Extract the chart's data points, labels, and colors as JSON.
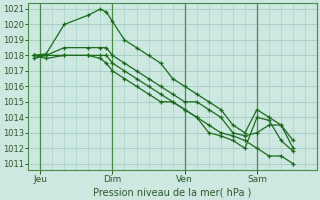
{
  "background_color": "#cce8e0",
  "grid_color": "#a8d0c8",
  "line_color": "#1a6b1a",
  "title": "Pression niveau de la mer( hPa )",
  "ylim": [
    1011,
    1021
  ],
  "yticks": [
    1011,
    1012,
    1013,
    1014,
    1015,
    1016,
    1017,
    1018,
    1019,
    1020,
    1021
  ],
  "xlim": [
    0,
    24
  ],
  "xtick_labels": [
    "Jeu",
    "Dim",
    "Ven",
    "Sam"
  ],
  "xtick_positions": [
    1,
    7,
    13,
    19
  ],
  "vline_positions": [
    1,
    7,
    13,
    19
  ],
  "series": [
    {
      "x": [
        0.5,
        1.5,
        3,
        5,
        6,
        6.5,
        7,
        8,
        9,
        10,
        11,
        12,
        13,
        14,
        15,
        16,
        17,
        18,
        19,
        20,
        21,
        22
      ],
      "y": [
        1018.0,
        1018.1,
        1020.0,
        1020.6,
        1021.0,
        1020.8,
        1020.2,
        1019.0,
        1018.5,
        1018.0,
        1017.5,
        1016.5,
        1016.0,
        1015.5,
        1015.0,
        1014.5,
        1013.5,
        1013.0,
        1014.5,
        1014.0,
        1013.5,
        1012.5
      ]
    },
    {
      "x": [
        0.5,
        1.5,
        3,
        5,
        6,
        6.5,
        7,
        8,
        9,
        10,
        11,
        12,
        13,
        14,
        15,
        16,
        17,
        18,
        19,
        20,
        21,
        22
      ],
      "y": [
        1018.0,
        1018.0,
        1018.5,
        1018.5,
        1018.5,
        1018.5,
        1018.0,
        1017.5,
        1017.0,
        1016.5,
        1016.0,
        1015.5,
        1015.0,
        1015.0,
        1014.5,
        1014.0,
        1013.0,
        1012.8,
        1013.0,
        1013.5,
        1013.5,
        1012.0
      ]
    },
    {
      "x": [
        0.5,
        1.5,
        3,
        5,
        6,
        6.5,
        7,
        8,
        9,
        10,
        11,
        12,
        13,
        14,
        15,
        16,
        17,
        18,
        19,
        20,
        21,
        22
      ],
      "y": [
        1017.8,
        1018.0,
        1018.0,
        1018.0,
        1018.0,
        1018.0,
        1017.5,
        1017.0,
        1016.5,
        1016.0,
        1015.5,
        1015.0,
        1014.5,
        1014.0,
        1013.5,
        1013.0,
        1012.8,
        1012.5,
        1012.0,
        1011.5,
        1011.5,
        1011.0
      ]
    },
    {
      "x": [
        0.5,
        1.5,
        3,
        5,
        6,
        6.5,
        7,
        8,
        9,
        10,
        11,
        12,
        13,
        14,
        15,
        16,
        17,
        18,
        19,
        20,
        21,
        22
      ],
      "y": [
        1018.0,
        1017.8,
        1018.0,
        1018.0,
        1017.8,
        1017.5,
        1017.0,
        1016.5,
        1016.0,
        1015.5,
        1015.0,
        1015.0,
        1014.5,
        1014.0,
        1013.0,
        1012.8,
        1012.5,
        1012.0,
        1014.0,
        1013.8,
        1012.5,
        1011.8
      ]
    }
  ]
}
